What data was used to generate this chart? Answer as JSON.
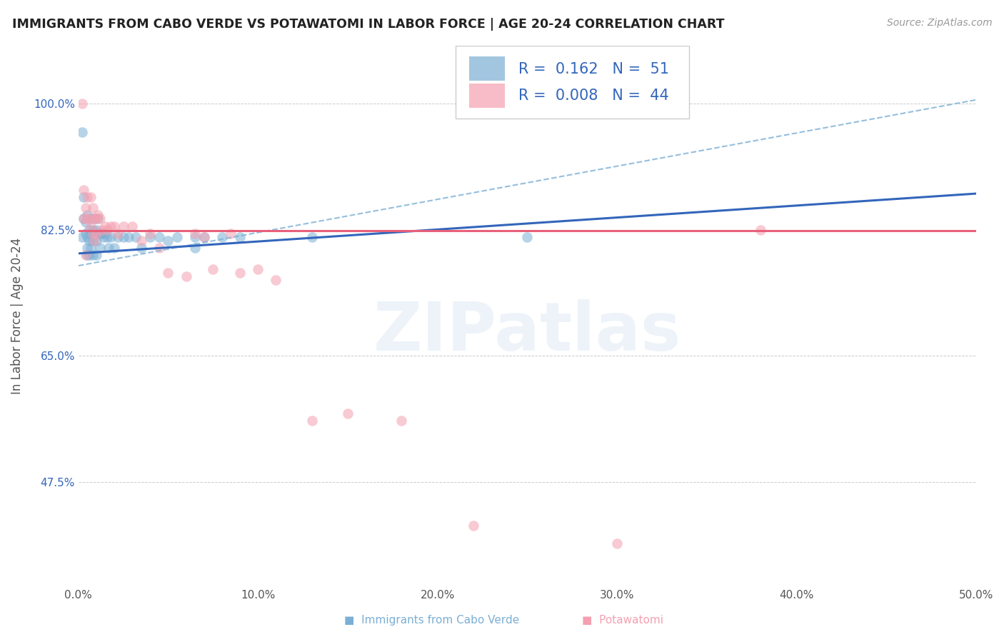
{
  "title": "IMMIGRANTS FROM CABO VERDE VS POTAWATOMI IN LABOR FORCE | AGE 20-24 CORRELATION CHART",
  "source": "Source: ZipAtlas.com",
  "ylabel": "In Labor Force | Age 20-24",
  "xmin": 0.0,
  "xmax": 0.5,
  "ymin": 0.33,
  "ymax": 1.08,
  "yticks": [
    0.475,
    0.65,
    0.825,
    1.0
  ],
  "ytick_labels": [
    "47.5%",
    "65.0%",
    "82.5%",
    "100.0%"
  ],
  "xticks": [
    0.0,
    0.1,
    0.2,
    0.3,
    0.4,
    0.5
  ],
  "xtick_labels": [
    "0.0%",
    "10.0%",
    "20.0%",
    "30.0%",
    "40.0%",
    "50.0%"
  ],
  "legend_R1": "0.162",
  "legend_N1": "51",
  "legend_R2": "0.008",
  "legend_N2": "44",
  "color_blue": "#7BAFD4",
  "color_pink": "#F4A0B0",
  "color_blue_line": "#3366BB",
  "color_pink_line": "#E8607A",
  "color_blue_dashed": "#7BAFD4",
  "watermark": "ZIPatlas",
  "blue_line_x0": 0.0,
  "blue_line_y0": 0.792,
  "blue_line_x1": 0.5,
  "blue_line_y1": 0.875,
  "pink_line_x0": 0.0,
  "pink_line_y0": 0.824,
  "pink_line_x1": 0.5,
  "pink_line_y1": 0.824,
  "dash_line_x0": 0.0,
  "dash_line_y0": 0.775,
  "dash_line_x1": 0.5,
  "dash_line_y1": 1.005,
  "blue_x": [
    0.002,
    0.002,
    0.003,
    0.003,
    0.004,
    0.004,
    0.005,
    0.005,
    0.005,
    0.005,
    0.006,
    0.006,
    0.006,
    0.007,
    0.007,
    0.007,
    0.008,
    0.008,
    0.008,
    0.009,
    0.009,
    0.01,
    0.01,
    0.01,
    0.011,
    0.011,
    0.012,
    0.012,
    0.013,
    0.014,
    0.015,
    0.016,
    0.017,
    0.018,
    0.02,
    0.022,
    0.025,
    0.028,
    0.032,
    0.035,
    0.04,
    0.045,
    0.05,
    0.055,
    0.065,
    0.065,
    0.07,
    0.08,
    0.09,
    0.13,
    0.25
  ],
  "blue_y": [
    0.96,
    0.815,
    0.87,
    0.84,
    0.835,
    0.82,
    0.845,
    0.815,
    0.79,
    0.8,
    0.825,
    0.81,
    0.79,
    0.84,
    0.82,
    0.8,
    0.825,
    0.81,
    0.79,
    0.84,
    0.82,
    0.825,
    0.81,
    0.79,
    0.84,
    0.82,
    0.82,
    0.8,
    0.82,
    0.815,
    0.82,
    0.815,
    0.8,
    0.815,
    0.8,
    0.815,
    0.815,
    0.815,
    0.815,
    0.8,
    0.815,
    0.815,
    0.81,
    0.815,
    0.815,
    0.8,
    0.815,
    0.815,
    0.815,
    0.815,
    0.815
  ],
  "pink_x": [
    0.002,
    0.003,
    0.003,
    0.004,
    0.004,
    0.005,
    0.005,
    0.006,
    0.007,
    0.007,
    0.008,
    0.008,
    0.009,
    0.009,
    0.01,
    0.01,
    0.011,
    0.012,
    0.013,
    0.015,
    0.016,
    0.018,
    0.02,
    0.022,
    0.025,
    0.03,
    0.035,
    0.04,
    0.045,
    0.05,
    0.06,
    0.065,
    0.07,
    0.075,
    0.085,
    0.09,
    0.1,
    0.11,
    0.13,
    0.15,
    0.18,
    0.22,
    0.3,
    0.38
  ],
  "pink_y": [
    1.0,
    0.88,
    0.84,
    0.855,
    0.79,
    0.87,
    0.84,
    0.84,
    0.87,
    0.83,
    0.855,
    0.82,
    0.84,
    0.81,
    0.84,
    0.82,
    0.845,
    0.84,
    0.825,
    0.83,
    0.825,
    0.83,
    0.83,
    0.82,
    0.83,
    0.83,
    0.81,
    0.82,
    0.8,
    0.765,
    0.76,
    0.82,
    0.815,
    0.77,
    0.82,
    0.765,
    0.77,
    0.755,
    0.56,
    0.57,
    0.56,
    0.415,
    0.39,
    0.825
  ]
}
